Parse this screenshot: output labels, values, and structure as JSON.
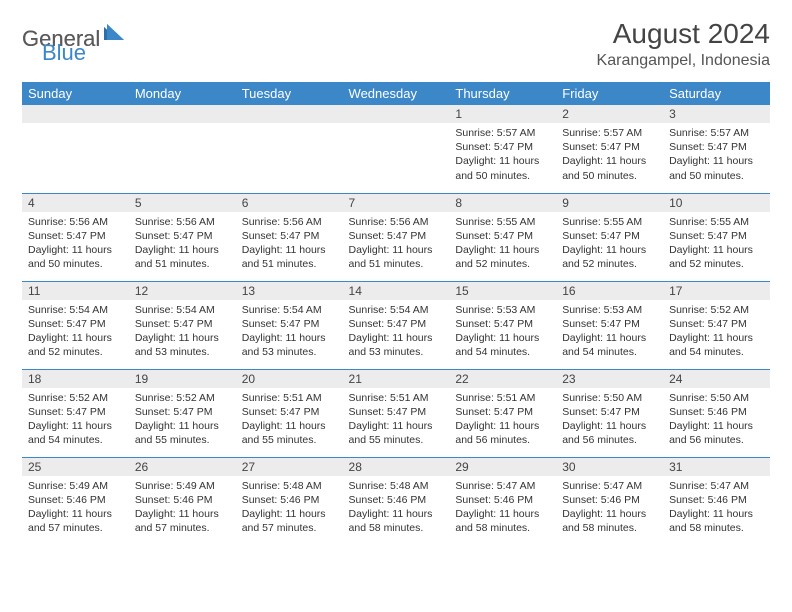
{
  "brand": {
    "part1": "General",
    "part2": "Blue"
  },
  "title": "August 2024",
  "location": "Karangampel, Indonesia",
  "colors": {
    "header_bg": "#3b87c8",
    "header_fg": "#ffffff",
    "daynum_bg": "#ececec",
    "row_border": "#3b87c8",
    "logo_gray": "#5a5a5a",
    "logo_blue": "#3b87c8"
  },
  "day_headers": [
    "Sunday",
    "Monday",
    "Tuesday",
    "Wednesday",
    "Thursday",
    "Friday",
    "Saturday"
  ],
  "weeks": [
    [
      {
        "n": "",
        "sr": "",
        "ss": "",
        "dl": ""
      },
      {
        "n": "",
        "sr": "",
        "ss": "",
        "dl": ""
      },
      {
        "n": "",
        "sr": "",
        "ss": "",
        "dl": ""
      },
      {
        "n": "",
        "sr": "",
        "ss": "",
        "dl": ""
      },
      {
        "n": "1",
        "sr": "Sunrise: 5:57 AM",
        "ss": "Sunset: 5:47 PM",
        "dl": "Daylight: 11 hours and 50 minutes."
      },
      {
        "n": "2",
        "sr": "Sunrise: 5:57 AM",
        "ss": "Sunset: 5:47 PM",
        "dl": "Daylight: 11 hours and 50 minutes."
      },
      {
        "n": "3",
        "sr": "Sunrise: 5:57 AM",
        "ss": "Sunset: 5:47 PM",
        "dl": "Daylight: 11 hours and 50 minutes."
      }
    ],
    [
      {
        "n": "4",
        "sr": "Sunrise: 5:56 AM",
        "ss": "Sunset: 5:47 PM",
        "dl": "Daylight: 11 hours and 50 minutes."
      },
      {
        "n": "5",
        "sr": "Sunrise: 5:56 AM",
        "ss": "Sunset: 5:47 PM",
        "dl": "Daylight: 11 hours and 51 minutes."
      },
      {
        "n": "6",
        "sr": "Sunrise: 5:56 AM",
        "ss": "Sunset: 5:47 PM",
        "dl": "Daylight: 11 hours and 51 minutes."
      },
      {
        "n": "7",
        "sr": "Sunrise: 5:56 AM",
        "ss": "Sunset: 5:47 PM",
        "dl": "Daylight: 11 hours and 51 minutes."
      },
      {
        "n": "8",
        "sr": "Sunrise: 5:55 AM",
        "ss": "Sunset: 5:47 PM",
        "dl": "Daylight: 11 hours and 52 minutes."
      },
      {
        "n": "9",
        "sr": "Sunrise: 5:55 AM",
        "ss": "Sunset: 5:47 PM",
        "dl": "Daylight: 11 hours and 52 minutes."
      },
      {
        "n": "10",
        "sr": "Sunrise: 5:55 AM",
        "ss": "Sunset: 5:47 PM",
        "dl": "Daylight: 11 hours and 52 minutes."
      }
    ],
    [
      {
        "n": "11",
        "sr": "Sunrise: 5:54 AM",
        "ss": "Sunset: 5:47 PM",
        "dl": "Daylight: 11 hours and 52 minutes."
      },
      {
        "n": "12",
        "sr": "Sunrise: 5:54 AM",
        "ss": "Sunset: 5:47 PM",
        "dl": "Daylight: 11 hours and 53 minutes."
      },
      {
        "n": "13",
        "sr": "Sunrise: 5:54 AM",
        "ss": "Sunset: 5:47 PM",
        "dl": "Daylight: 11 hours and 53 minutes."
      },
      {
        "n": "14",
        "sr": "Sunrise: 5:54 AM",
        "ss": "Sunset: 5:47 PM",
        "dl": "Daylight: 11 hours and 53 minutes."
      },
      {
        "n": "15",
        "sr": "Sunrise: 5:53 AM",
        "ss": "Sunset: 5:47 PM",
        "dl": "Daylight: 11 hours and 54 minutes."
      },
      {
        "n": "16",
        "sr": "Sunrise: 5:53 AM",
        "ss": "Sunset: 5:47 PM",
        "dl": "Daylight: 11 hours and 54 minutes."
      },
      {
        "n": "17",
        "sr": "Sunrise: 5:52 AM",
        "ss": "Sunset: 5:47 PM",
        "dl": "Daylight: 11 hours and 54 minutes."
      }
    ],
    [
      {
        "n": "18",
        "sr": "Sunrise: 5:52 AM",
        "ss": "Sunset: 5:47 PM",
        "dl": "Daylight: 11 hours and 54 minutes."
      },
      {
        "n": "19",
        "sr": "Sunrise: 5:52 AM",
        "ss": "Sunset: 5:47 PM",
        "dl": "Daylight: 11 hours and 55 minutes."
      },
      {
        "n": "20",
        "sr": "Sunrise: 5:51 AM",
        "ss": "Sunset: 5:47 PM",
        "dl": "Daylight: 11 hours and 55 minutes."
      },
      {
        "n": "21",
        "sr": "Sunrise: 5:51 AM",
        "ss": "Sunset: 5:47 PM",
        "dl": "Daylight: 11 hours and 55 minutes."
      },
      {
        "n": "22",
        "sr": "Sunrise: 5:51 AM",
        "ss": "Sunset: 5:47 PM",
        "dl": "Daylight: 11 hours and 56 minutes."
      },
      {
        "n": "23",
        "sr": "Sunrise: 5:50 AM",
        "ss": "Sunset: 5:47 PM",
        "dl": "Daylight: 11 hours and 56 minutes."
      },
      {
        "n": "24",
        "sr": "Sunrise: 5:50 AM",
        "ss": "Sunset: 5:46 PM",
        "dl": "Daylight: 11 hours and 56 minutes."
      }
    ],
    [
      {
        "n": "25",
        "sr": "Sunrise: 5:49 AM",
        "ss": "Sunset: 5:46 PM",
        "dl": "Daylight: 11 hours and 57 minutes."
      },
      {
        "n": "26",
        "sr": "Sunrise: 5:49 AM",
        "ss": "Sunset: 5:46 PM",
        "dl": "Daylight: 11 hours and 57 minutes."
      },
      {
        "n": "27",
        "sr": "Sunrise: 5:48 AM",
        "ss": "Sunset: 5:46 PM",
        "dl": "Daylight: 11 hours and 57 minutes."
      },
      {
        "n": "28",
        "sr": "Sunrise: 5:48 AM",
        "ss": "Sunset: 5:46 PM",
        "dl": "Daylight: 11 hours and 58 minutes."
      },
      {
        "n": "29",
        "sr": "Sunrise: 5:47 AM",
        "ss": "Sunset: 5:46 PM",
        "dl": "Daylight: 11 hours and 58 minutes."
      },
      {
        "n": "30",
        "sr": "Sunrise: 5:47 AM",
        "ss": "Sunset: 5:46 PM",
        "dl": "Daylight: 11 hours and 58 minutes."
      },
      {
        "n": "31",
        "sr": "Sunrise: 5:47 AM",
        "ss": "Sunset: 5:46 PM",
        "dl": "Daylight: 11 hours and 58 minutes."
      }
    ]
  ]
}
